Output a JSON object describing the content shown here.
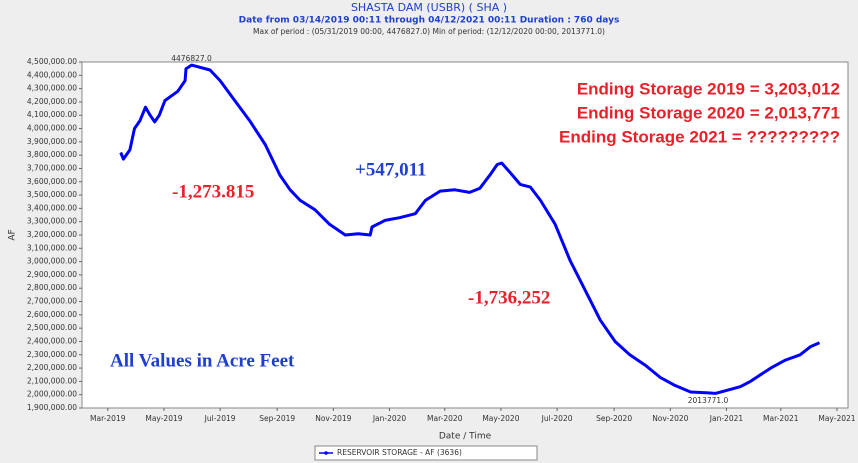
{
  "chart_data": {
    "type": "line",
    "title": "SHASTA DAM  (USBR) ( SHA )",
    "subtitle": "Date from 03/14/2019 00:11 through 04/12/2021 00:11 Duration : 760 days",
    "period_note": "Max of period : (05/31/2019 00:00, 4476827.0)  Min of period: (12/12/2020 00:00,  2013771.0)",
    "x_label": "Date / Time",
    "y_label": "AF",
    "xlim": [
      -41,
      791
    ],
    "xticks": [
      {
        "value": -13,
        "label": "Mar-2019"
      },
      {
        "value": 48,
        "label": "May-2019"
      },
      {
        "value": 109,
        "label": "Jul-2019"
      },
      {
        "value": 171,
        "label": "Sep-2019"
      },
      {
        "value": 232,
        "label": "Nov-2019"
      },
      {
        "value": 293,
        "label": "Jan-2020"
      },
      {
        "value": 353,
        "label": "Mar-2020"
      },
      {
        "value": 414,
        "label": "May-2020"
      },
      {
        "value": 475,
        "label": "Jul-2020"
      },
      {
        "value": 537,
        "label": "Sep-2020"
      },
      {
        "value": 598,
        "label": "Nov-2020"
      },
      {
        "value": 659,
        "label": "Jan-2021"
      },
      {
        "value": 718,
        "label": "Mar-2021"
      },
      {
        "value": 779,
        "label": "May-2021"
      }
    ],
    "ylim": [
      1900000,
      4500000
    ],
    "yticks": [
      {
        "value": 1900000,
        "label": "1,900,000.00"
      },
      {
        "value": 2000000,
        "label": "2,000,000.00"
      },
      {
        "value": 2100000,
        "label": "2,100,000.00"
      },
      {
        "value": 2200000,
        "label": "2,200,000.00"
      },
      {
        "value": 2300000,
        "label": "2,300,000.00"
      },
      {
        "value": 2400000,
        "label": "2,400,000.00"
      },
      {
        "value": 2500000,
        "label": "2,500,000.00"
      },
      {
        "value": 2600000,
        "label": "2,600,000.00"
      },
      {
        "value": 2700000,
        "label": "2,700,000.00"
      },
      {
        "value": 2800000,
        "label": "2,800,000.00"
      },
      {
        "value": 2900000,
        "label": "2,900,000.00"
      },
      {
        "value": 3000000,
        "label": "3,000,000.00"
      },
      {
        "value": 3100000,
        "label": "3,100,000.00"
      },
      {
        "value": 3200000,
        "label": "3,200,000.00"
      },
      {
        "value": 3300000,
        "label": "3,300,000.00"
      },
      {
        "value": 3400000,
        "label": "3,400,000.00"
      },
      {
        "value": 3500000,
        "label": "3,500,000.00"
      },
      {
        "value": 3600000,
        "label": "3,600,000.00"
      },
      {
        "value": 3700000,
        "label": "3,700,000.00"
      },
      {
        "value": 3800000,
        "label": "3,800,000.00"
      },
      {
        "value": 3900000,
        "label": "3,900,000.00"
      },
      {
        "value": 4000000,
        "label": "4,000,000.00"
      },
      {
        "value": 4100000,
        "label": "4,100,000.00"
      },
      {
        "value": 4200000,
        "label": "4,200,000.00"
      },
      {
        "value": 4300000,
        "label": "4,300,000.00"
      },
      {
        "value": 4400000,
        "label": "4,400,000.00"
      },
      {
        "value": 4500000,
        "label": "4,500,000.00"
      }
    ],
    "x": [
      1,
      4,
      11,
      16,
      22,
      28,
      33,
      38,
      43,
      49,
      57,
      63,
      71,
      72,
      78,
      98,
      109,
      125,
      141,
      158,
      174,
      185,
      196,
      212,
      228,
      245,
      259,
      272,
      274,
      288,
      304,
      321,
      332,
      348,
      364,
      380,
      391,
      402,
      410,
      415,
      424,
      435,
      446,
      457,
      473,
      489,
      511,
      522,
      538,
      554,
      571,
      587,
      603,
      620,
      639,
      647,
      658,
      674,
      685,
      696,
      707,
      723,
      739,
      750,
      760
    ],
    "series": [
      {
        "name": "RESERVOIR STORAGE - AF (3636)",
        "color": "#0000ff",
        "values": [
          3820000,
          3770000,
          3840000,
          4000000,
          4060000,
          4160000,
          4100000,
          4050000,
          4100000,
          4210000,
          4250000,
          4280000,
          4360000,
          4450000,
          4476827,
          4440000,
          4360000,
          4210000,
          4060000,
          3880000,
          3650000,
          3540000,
          3460000,
          3390000,
          3280000,
          3200000,
          3210000,
          3200000,
          3260000,
          3310000,
          3330000,
          3360000,
          3460000,
          3530000,
          3540000,
          3520000,
          3550000,
          3650000,
          3730000,
          3740000,
          3670000,
          3580000,
          3560000,
          3460000,
          3280000,
          3010000,
          2710000,
          2560000,
          2400000,
          2300000,
          2220000,
          2130000,
          2070000,
          2020000,
          2013771,
          2010000,
          2030000,
          2060000,
          2100000,
          2150000,
          2200000,
          2260000,
          2300000,
          2360000,
          2390000
        ]
      }
    ],
    "point_labels": [
      {
        "index": 14,
        "text": "4476827.0"
      },
      {
        "index": 54,
        "text": "2013771.0"
      }
    ],
    "annotations": [
      {
        "text": "-1,273.815",
        "color": "#e8212a"
      },
      {
        "text": "+547,011",
        "color": "#1f3fd0"
      },
      {
        "text": "-1,736,252",
        "color": "#e8212a"
      },
      {
        "text": "All Values in Acre Feet",
        "color": "#1f3fd0"
      },
      {
        "text": "Ending Storage 2019 = 3,203,012",
        "color": "#e8212a"
      },
      {
        "text": "Ending Storage 2020 = 2,013,771",
        "color": "#e8212a"
      },
      {
        "text": "Ending Storage 2021 = ?????????",
        "color": "#e8212a"
      }
    ],
    "legend": "bottom"
  }
}
